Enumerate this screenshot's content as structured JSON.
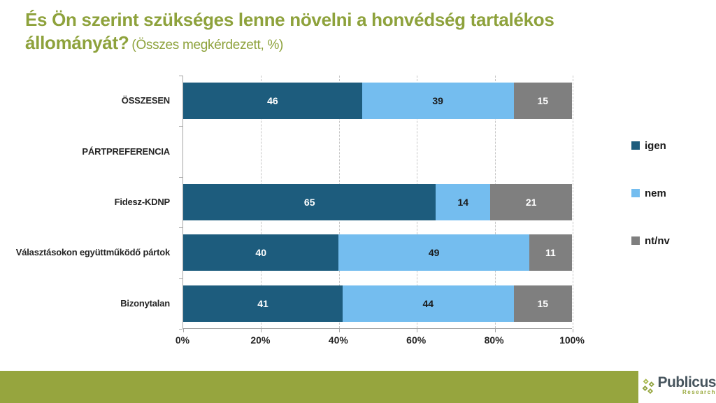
{
  "title": {
    "line1": "És Ön szerint szükséges lenne növelni a honvédség tartalékos",
    "line2_bold": "állományát?",
    "subtitle": "(Összes megkérdezett, %)"
  },
  "chart_data": {
    "type": "bar",
    "orientation": "horizontal",
    "stacked": true,
    "title": "És Ön szerint szükséges lenne növelni a honvédség tartalékos állományát? (Összes megkérdezett, %)",
    "categories": [
      "ÖSSZESEN",
      "PÁRTPREFERENCIA",
      "Fidesz-KDNP",
      "Választásokon együttműködő pártok",
      "Bizonytalan"
    ],
    "series": [
      {
        "name": "igen",
        "color": "#1d5c7d",
        "label_color": "#ffffff",
        "values": [
          46,
          null,
          65,
          40,
          41
        ]
      },
      {
        "name": "nem",
        "color": "#74bdef",
        "label_color": "#1a1a1a",
        "values": [
          39,
          null,
          14,
          49,
          44
        ]
      },
      {
        "name": "nt/nv",
        "color": "#7f7f7f",
        "label_color": "#ffffff",
        "values": [
          15,
          null,
          21,
          11,
          15
        ]
      }
    ],
    "xlim": [
      0,
      100
    ],
    "x_ticks": [
      "0%",
      "20%",
      "40%",
      "60%",
      "80%",
      "100%"
    ],
    "grid": "vertical-dashed",
    "legend_position": "right",
    "note": "PÁRTPREFERENCIA row is a section header with no bar"
  },
  "footer": {
    "brand_name": "Publicus",
    "brand_sub": "Research"
  },
  "colors": {
    "title_green": "#8ea23c",
    "footer_green": "#96a53e",
    "axis_gray": "#a6a6a6",
    "gridline_gray": "#c6c6c6"
  }
}
